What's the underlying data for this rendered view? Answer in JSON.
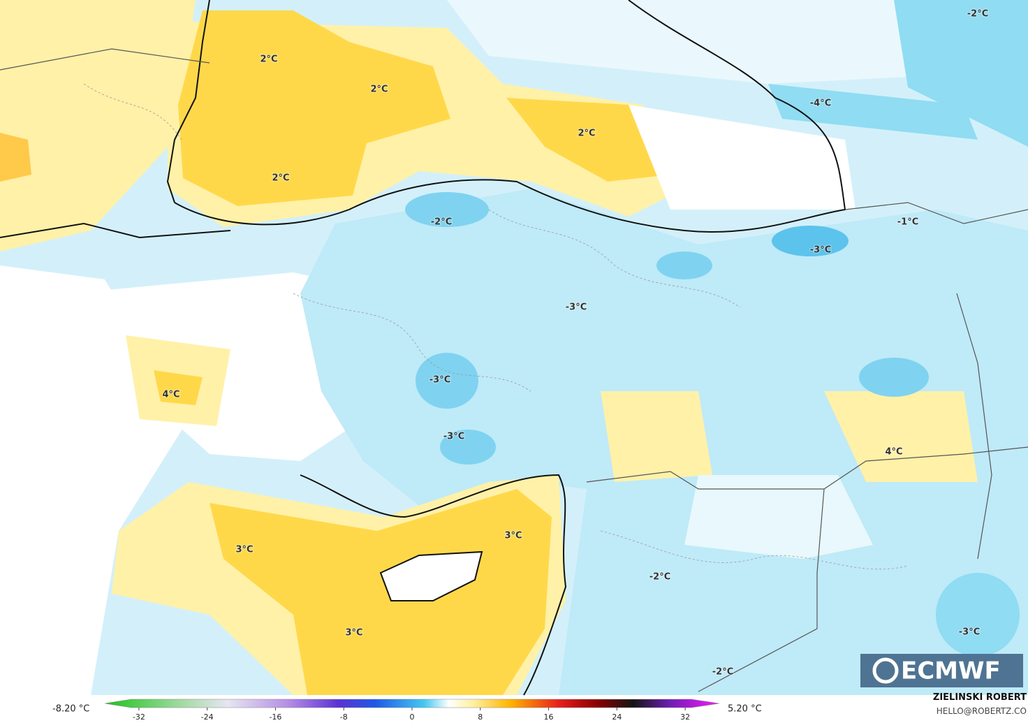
{
  "map": {
    "contour_labels": [
      "-2°C",
      "2°C",
      "2°C",
      "2°C",
      "2°C",
      "-4°C",
      "-2°C",
      "-1°C",
      "-3°C",
      "-3°C",
      "-3°C",
      "4°C",
      "-3°C",
      "4°C",
      "3°C",
      "3°C",
      "-2°C",
      "3°C",
      "-3°C",
      "-2°C"
    ],
    "logo": "ECMWF"
  },
  "colorbar": {
    "min_label": "-8.20 °C",
    "max_label": "5.20 °C",
    "range": [
      -36,
      36
    ],
    "ticks": [
      -32,
      -24,
      -16,
      -8,
      0,
      8,
      16,
      24,
      32
    ]
  },
  "credit": {
    "author": "ZIELINSKI ROBERT",
    "contact": "HELLO@ROBERTZ.CO"
  }
}
